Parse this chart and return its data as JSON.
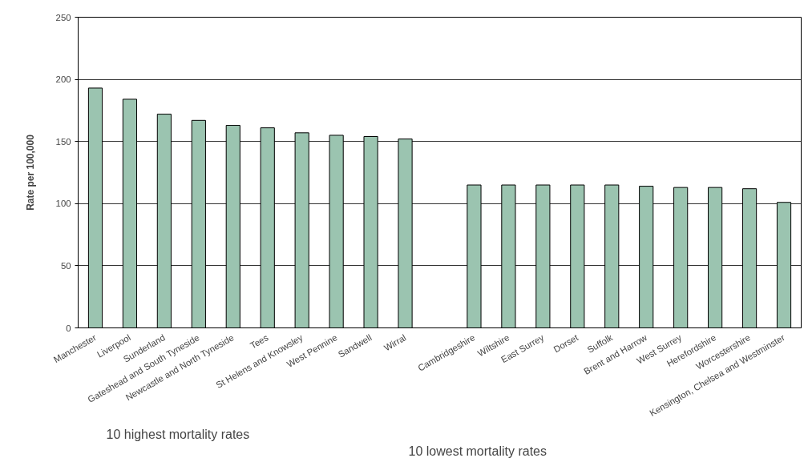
{
  "chart_data": {
    "type": "bar",
    "ylabel": "Rate per 100,000",
    "categories": [
      "Manchester",
      "Liverpool",
      "Sunderland",
      "Gateshead and South Tyneside",
      "Newcastle and North Tyneside",
      "Tees",
      "St Helens and Knowsley",
      "West Pennine",
      "Sandwell",
      "Wirral",
      null,
      "Cambridgeshire",
      "Wiltshire",
      "East Surrey",
      "Dorset",
      "Suffolk",
      "Brent and Harrow",
      "West Surrey",
      "Herefordshire",
      "Worcestershire",
      "Kensington, Chelsea and Westminster"
    ],
    "values": [
      193,
      184,
      172,
      167,
      163,
      161,
      157,
      155,
      154,
      152,
      null,
      115,
      115,
      115,
      115,
      115,
      114,
      113,
      113,
      112,
      101
    ],
    "color": "#9bc4b0",
    "ylim": [
      0,
      250
    ],
    "yticks": [
      0,
      50,
      100,
      150,
      200,
      250
    ],
    "grid": "y",
    "annotations": [
      "10 highest mortality rates",
      "10 lowest mortality rates"
    ]
  }
}
